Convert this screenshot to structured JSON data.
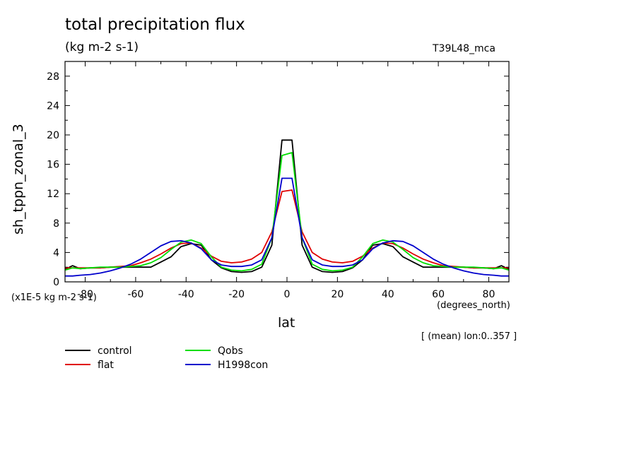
{
  "chart_data": {
    "type": "line",
    "title": "total precipitation flux",
    "subtitle": "(kg m-2 s-1)",
    "dataset": "T39L48_mca",
    "ylabel": "sh_tppn_zonal_3",
    "yunits": "(x1E-5 kg m-2 s-1)",
    "xlabel": "lat",
    "xunits": "(degrees_north)",
    "note": "[ (mean) lon:0..357 ]",
    "xlim": [
      -88,
      88
    ],
    "ylim": [
      0,
      30
    ],
    "xticks": [
      -80,
      -60,
      -40,
      -20,
      0,
      20,
      40,
      60,
      80
    ],
    "xtick_labels": [
      "-80",
      "-60",
      "-40",
      "-20",
      "0",
      "20",
      "40",
      "60",
      "80"
    ],
    "yticks": [
      0,
      4,
      8,
      12,
      16,
      20,
      24,
      28
    ],
    "ytick_labels": [
      "0",
      "4",
      "8",
      "12",
      "16",
      "20",
      "24",
      "28"
    ],
    "legend_position": "bottom-left",
    "series": [
      {
        "name": "control",
        "color": "#000000",
        "x": [
          -88,
          -85,
          -82,
          -78,
          -74,
          -70,
          -66,
          -62,
          -58,
          -54,
          -50,
          -46,
          -42,
          -38,
          -34,
          -30,
          -26,
          -22,
          -18,
          -14,
          -10,
          -6,
          -2,
          2,
          6,
          10,
          14,
          18,
          22,
          26,
          30,
          34,
          38,
          42,
          46,
          50,
          54,
          58,
          62,
          66,
          70,
          74,
          78,
          82,
          85,
          88
        ],
        "y": [
          1.7,
          2.2,
          1.8,
          1.9,
          1.9,
          2.0,
          2.0,
          2.0,
          2.0,
          2.0,
          2.7,
          3.4,
          4.8,
          5.2,
          5.0,
          3.0,
          1.9,
          1.4,
          1.3,
          1.4,
          2.0,
          5.0,
          19.3,
          19.3,
          5.0,
          2.0,
          1.4,
          1.3,
          1.4,
          1.9,
          3.0,
          5.0,
          5.2,
          4.8,
          3.4,
          2.7,
          2.0,
          2.0,
          2.0,
          2.0,
          2.0,
          1.9,
          1.9,
          1.8,
          2.2,
          1.7
        ]
      },
      {
        "name": "flat",
        "color": "#e00000",
        "x": [
          -88,
          -85,
          -82,
          -78,
          -74,
          -70,
          -66,
          -62,
          -58,
          -54,
          -50,
          -46,
          -42,
          -38,
          -34,
          -30,
          -26,
          -22,
          -18,
          -14,
          -10,
          -6,
          -2,
          2,
          6,
          10,
          14,
          18,
          22,
          26,
          30,
          34,
          38,
          42,
          46,
          50,
          54,
          58,
          62,
          66,
          70,
          74,
          78,
          82,
          85,
          88
        ],
        "y": [
          1.9,
          1.9,
          1.9,
          1.9,
          1.9,
          2.0,
          2.1,
          2.2,
          2.6,
          3.1,
          3.8,
          4.6,
          5.2,
          5.3,
          4.6,
          3.5,
          2.8,
          2.6,
          2.7,
          3.1,
          4.0,
          6.8,
          12.3,
          12.5,
          6.8,
          4.0,
          3.1,
          2.7,
          2.6,
          2.8,
          3.5,
          4.6,
          5.3,
          5.2,
          4.6,
          3.8,
          3.1,
          2.6,
          2.2,
          2.1,
          2.0,
          1.9,
          1.9,
          1.9,
          1.9,
          1.9
        ]
      },
      {
        "name": "Qobs",
        "color": "#00dd00",
        "x": [
          -88,
          -85,
          -82,
          -78,
          -74,
          -70,
          -66,
          -62,
          -58,
          -54,
          -50,
          -46,
          -42,
          -38,
          -34,
          -30,
          -26,
          -22,
          -18,
          -14,
          -10,
          -6,
          -2,
          2,
          6,
          10,
          14,
          18,
          22,
          26,
          30,
          34,
          38,
          42,
          46,
          50,
          54,
          58,
          62,
          66,
          70,
          74,
          78,
          82,
          85,
          88
        ],
        "y": [
          1.6,
          1.9,
          1.8,
          1.9,
          2.0,
          2.0,
          2.0,
          2.1,
          2.2,
          2.6,
          3.3,
          4.4,
          5.4,
          5.7,
          5.2,
          3.4,
          2.0,
          1.6,
          1.5,
          1.7,
          2.4,
          6.0,
          17.2,
          17.6,
          6.0,
          2.4,
          1.7,
          1.5,
          1.6,
          2.0,
          3.4,
          5.2,
          5.7,
          5.4,
          4.4,
          3.3,
          2.6,
          2.2,
          2.1,
          2.0,
          2.0,
          2.0,
          1.9,
          1.8,
          1.9,
          1.6
        ]
      },
      {
        "name": "H1998con",
        "color": "#0000cc",
        "x": [
          -88,
          -85,
          -82,
          -78,
          -74,
          -70,
          -66,
          -62,
          -58,
          -54,
          -50,
          -46,
          -42,
          -38,
          -34,
          -30,
          -26,
          -22,
          -18,
          -14,
          -10,
          -6,
          -2,
          2,
          6,
          10,
          14,
          18,
          22,
          26,
          30,
          34,
          38,
          42,
          46,
          50,
          54,
          58,
          62,
          66,
          70,
          74,
          78,
          82,
          85,
          88
        ],
        "y": [
          0.8,
          0.8,
          0.9,
          1.0,
          1.2,
          1.5,
          1.9,
          2.4,
          3.1,
          4.0,
          4.9,
          5.5,
          5.6,
          5.3,
          4.5,
          3.0,
          2.3,
          2.1,
          2.1,
          2.3,
          3.0,
          6.0,
          14.1,
          14.1,
          6.0,
          3.0,
          2.3,
          2.1,
          2.1,
          2.3,
          3.0,
          4.5,
          5.3,
          5.6,
          5.5,
          4.9,
          4.0,
          3.1,
          2.4,
          1.9,
          1.5,
          1.2,
          1.0,
          0.9,
          0.8,
          0.8
        ]
      }
    ]
  }
}
